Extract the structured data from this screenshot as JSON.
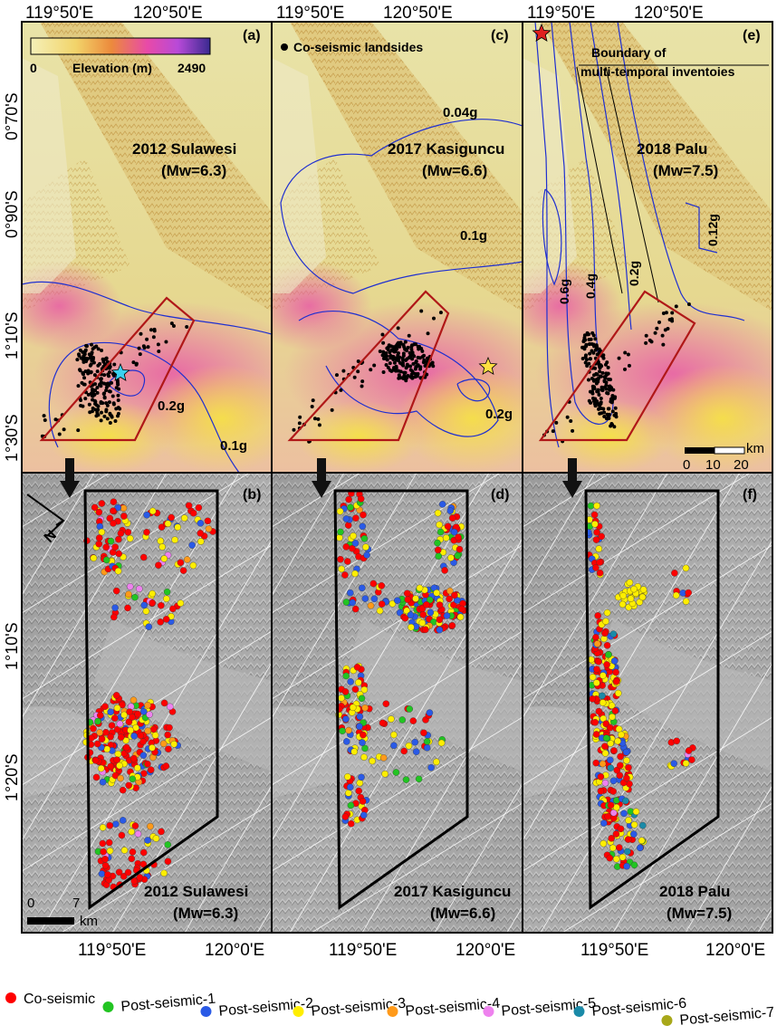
{
  "top_axis": {
    "ticks": [
      {
        "label": "119°50'E",
        "x": 0
      },
      {
        "label": "120°50'E",
        "x": 1
      },
      {
        "label": "119°50'E",
        "x": 2
      },
      {
        "label": "120°50'E",
        "x": 3
      },
      {
        "label": "119°50'E",
        "x": 4
      },
      {
        "label": "120°50'E",
        "x": 5
      }
    ]
  },
  "left_axis_top": [
    "0°70'S",
    "0°90'S",
    "1°10'S",
    "1°30'S"
  ],
  "left_axis_bottom": [
    "1°10'S",
    "1°20'S"
  ],
  "bottom_axis": [
    "119°50'E",
    "120°0'E",
    "119°50'E",
    "120°0'E",
    "119°50'E",
    "120°0'E"
  ],
  "elevation_legend": {
    "title": "Elevation (m)",
    "min": "0",
    "max": "2490"
  },
  "panels_top": [
    {
      "letter": "(a)",
      "title": "2012 Sulawesi",
      "mag": "(Mw=6.3)",
      "pga": [
        "0.2g",
        "0.1g"
      ]
    },
    {
      "letter": "(c)",
      "title": "2017 Kasiguncu",
      "mag": "(Mw=6.6)",
      "pga": [
        "0.04g",
        "0.1g",
        "0.2g"
      ],
      "legend": "Co-seismic landsides"
    },
    {
      "letter": "(e)",
      "title": "2018 Palu",
      "mag": "(Mw=7.5)",
      "pga": [
        "0.6g",
        "0.4g",
        "0.2g",
        "0.12g"
      ],
      "boundary_label_1": "Boundary of",
      "boundary_label_2": "multi-temporal inventoies"
    }
  ],
  "panels_bottom": [
    {
      "letter": "(b)",
      "title": "2012 Sulawesi",
      "mag": "(Mw=6.3)"
    },
    {
      "letter": "(d)",
      "title": "2017 Kasiguncu",
      "mag": "(Mw=6.6)"
    },
    {
      "letter": "(f)",
      "title": "2018 Palu",
      "mag": "(Mw=7.5)"
    }
  ],
  "scalebar_top": {
    "ticks": [
      "0",
      "10",
      "20"
    ],
    "unit": "km"
  },
  "scalebar_bottom": {
    "ticks": [
      "0",
      "7"
    ],
    "unit": "km"
  },
  "north_label": "N",
  "colors": {
    "co": "#ff0000",
    "post1": "#22c422",
    "post2": "#2a5ae6",
    "post3": "#ffee00",
    "post4": "#ff9a1a",
    "post5": "#ee82ee",
    "post6": "#1a8aa8",
    "post7": "#a8a81a",
    "contour": "#1f2fd0",
    "rect": "#b01818"
  },
  "legend": [
    {
      "label": "Co-seismic",
      "color": "#ff0000"
    },
    {
      "label": "Post-seismic-1",
      "color": "#22c422"
    },
    {
      "label": "Post-seismic-2",
      "color": "#2a5ae6"
    },
    {
      "label": "Post-seismic-3",
      "color": "#ffee00"
    },
    {
      "label": "Post-seismic-4",
      "color": "#ff9a1a"
    },
    {
      "label": "Post-seismic-5",
      "color": "#ee82ee"
    },
    {
      "label": "Post-seismic-6",
      "color": "#1a8aa8"
    },
    {
      "label": "Post-seismic-7",
      "color": "#a8a81a"
    }
  ]
}
